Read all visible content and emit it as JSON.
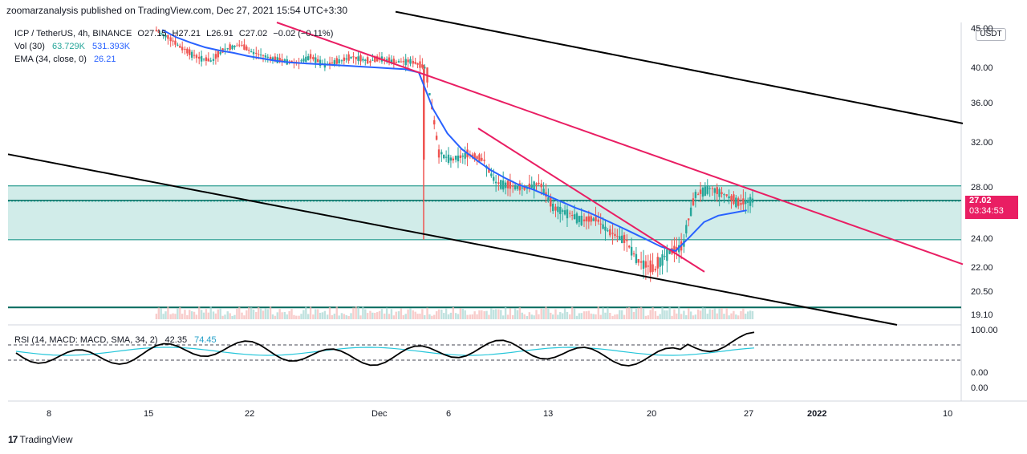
{
  "header": {
    "publisher_line": "zoomarzanalysis published on TradingView.com, Dec 27, 2021 15:54 UTC+3:30"
  },
  "legend": {
    "symbol": "ICP / TetherUS, 4h, BINANCE",
    "ohlc": [
      "O27.15",
      "H27.21",
      "L26.91",
      "C27.02",
      "−0.02 (−0.11%)"
    ],
    "volume_name": "Vol (30)",
    "volume_value_1": "63.729K",
    "volume_value_2": "531.393K",
    "ema_name": "EMA (34, close, 0)",
    "ema_value": "26.21",
    "oscillator_name": "RSI (14, MACD: MACD, SMA, 34, 2)",
    "oscillator_value_1": "42.35",
    "oscillator_value_2": "74.45"
  },
  "price_axis": {
    "currency": "USDT",
    "labels": [
      "45.00",
      "40.00",
      "36.00",
      "32.00",
      "28.00",
      "24.00",
      "22.00",
      "20.50",
      "19.10"
    ],
    "last_price": "27.02",
    "countdown": "03:34:53"
  },
  "osc_axis": {
    "labels": [
      "100.00",
      "0.00",
      "0.00"
    ]
  },
  "time_axis": {
    "labels": [
      "8",
      "15",
      "22",
      "Dec",
      "6",
      "13",
      "20",
      "27",
      "2022",
      "10"
    ]
  },
  "footer": {
    "brand": "TradingView"
  },
  "colors": {
    "up": "#26a69a",
    "down": "#ef5350",
    "ema": "#2962ff",
    "trend_pink": "#e91e63",
    "channel": "#000000",
    "zone_fill": "#b2dfdb",
    "zone_border": "#00897b"
  },
  "chart_data": {
    "type": "candlestick",
    "title": "ICP / TetherUS, 4h, BINANCE",
    "x": [
      "Nov 16",
      "Nov 17",
      "Nov 18",
      "Nov 19",
      "Nov 20",
      "Nov 21",
      "Nov 22",
      "Nov 23",
      "Nov 24",
      "Nov 25",
      "Nov 26",
      "Nov 27",
      "Nov 28",
      "Nov 29",
      "Nov 30",
      "Dec 1",
      "Dec 2",
      "Dec 3",
      "Dec 4",
      "Dec 5",
      "Dec 6",
      "Dec 7",
      "Dec 8",
      "Dec 9",
      "Dec 10",
      "Dec 11",
      "Dec 12",
      "Dec 13",
      "Dec 14",
      "Dec 15",
      "Dec 16",
      "Dec 17",
      "Dec 18",
      "Dec 19",
      "Dec 20",
      "Dec 21",
      "Dec 22",
      "Dec 23",
      "Dec 24",
      "Dec 25",
      "Dec 26",
      "Dec 27"
    ],
    "series": [
      {
        "name": "Price",
        "close": [
          44.0,
          42.5,
          41.5,
          41.0,
          42.5,
          43.0,
          42.0,
          41.5,
          41.0,
          40.8,
          41.5,
          40.5,
          41.0,
          41.5,
          41.0,
          41.3,
          40.8,
          41.0,
          40.2,
          31.0,
          30.5,
          31.0,
          30.5,
          28.5,
          28.2,
          28.0,
          28.4,
          26.5,
          26.0,
          25.5,
          25.5,
          24.5,
          24.0,
          22.5,
          22.0,
          23.0,
          23.5,
          27.5,
          28.0,
          27.5,
          26.8,
          27.02
        ]
      },
      {
        "name": "EMA (34, close, 0)",
        "values": [
          45.0,
          44.0,
          43.3,
          42.7,
          42.3,
          42.0,
          41.6,
          41.3,
          41.0,
          40.8,
          40.7,
          40.6,
          40.5,
          40.4,
          40.3,
          40.2,
          40.1,
          40.0,
          39.6,
          35.5,
          33.0,
          31.5,
          30.5,
          29.6,
          28.9,
          28.3,
          27.9,
          27.4,
          26.9,
          26.4,
          26.0,
          25.5,
          25.0,
          24.5,
          24.0,
          23.5,
          23.2,
          24.2,
          25.3,
          25.8,
          26.0,
          26.21
        ]
      }
    ],
    "support_zone": [
      24.0,
      28.2
    ],
    "horizontal_line": 27.0,
    "ylim": [
      19.1,
      45.0
    ],
    "y_scale": "log"
  }
}
